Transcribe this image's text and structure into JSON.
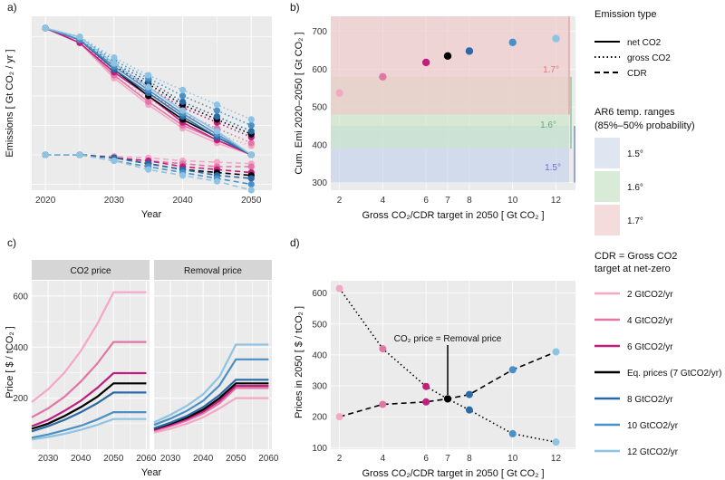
{
  "panels": {
    "a": {
      "tag": "a)",
      "xlabel": "Year",
      "ylabel": "Emissions [ Gt CO₂ / yr ]",
      "xticks": [
        "2020",
        "2030",
        "2040",
        "2050"
      ],
      "xtick_vals": [
        2020,
        2030,
        2040,
        2050
      ]
    },
    "b": {
      "tag": "b)",
      "xlabel": "Gross CO₂/CDR target in 2050 [ Gt CO₂ ]",
      "ylabel": "Cum. Emi 2020–2050 [ Gt CO₂ ]",
      "yticks": [
        "300",
        "400",
        "500",
        "600",
        "700"
      ],
      "ytick_vals": [
        300,
        400,
        500,
        600,
        700
      ],
      "xticks": [
        "2",
        "4",
        "6",
        "7",
        "8",
        "10",
        "12"
      ],
      "xtick_vals": [
        2,
        4,
        6,
        7,
        8,
        10,
        12
      ],
      "band_labels": [
        "1.7°",
        "1.6°",
        "1.5°"
      ]
    },
    "c": {
      "tag": "c)",
      "xlabel": "Year",
      "ylabel": "Price [ $ / tCO₂ ]",
      "strips": [
        "CO2 price",
        "Removal price"
      ],
      "yticks": [
        "200",
        "400",
        "600"
      ],
      "ytick_vals": [
        200,
        400,
        600
      ],
      "xticks": [
        "2030",
        "2040",
        "2050",
        "2060"
      ],
      "xtick_vals": [
        2030,
        2040,
        2050,
        2060
      ]
    },
    "d": {
      "tag": "d)",
      "xlabel": "Gross CO₂/CDR target in 2050 [ Gt CO₂ ]",
      "ylabel": "Prices in 2050 [ $ / tCO₂ ]",
      "annotation": "CO₂ price = Removal price",
      "yticks": [
        "100",
        "200",
        "300",
        "400",
        "500",
        "600"
      ],
      "ytick_vals": [
        100,
        200,
        300,
        400,
        500,
        600
      ],
      "xticks": [
        "2",
        "4",
        "6",
        "7",
        "8",
        "10",
        "12"
      ],
      "xtick_vals": [
        2,
        4,
        6,
        7,
        8,
        10,
        12
      ]
    }
  },
  "legends": {
    "emission_type": {
      "title": "Emission type",
      "items": [
        "net CO2",
        "gross CO2",
        "CDR"
      ]
    },
    "ar6": {
      "title_line1": "AR6 temp. ranges",
      "title_line2": "(85%–50% probability)",
      "items": [
        "1.5°",
        "1.6°",
        "1.7°"
      ],
      "colors": [
        "#dfe5f1",
        "#d8ebd6",
        "#f4dcdc"
      ]
    },
    "cdr": {
      "title_line1": "CDR = Gross CO2",
      "title_line2": "target at net-zero",
      "items": [
        "2 GtCO2/yr",
        "4 GtCO2/yr",
        "6 GtCO2/yr",
        "Eq. prices (7 GtCO2/yr)",
        "8 GtCO2/yr",
        "10 GtCO2/yr",
        "12 GtCO2/yr"
      ],
      "colors": [
        "#f4a7c6",
        "#e077a6",
        "#c21e7e",
        "#000000",
        "#2b6aa4",
        "#4a90c4",
        "#8fc3e2"
      ]
    }
  },
  "chart_data": [
    {
      "id": "a",
      "type": "line",
      "x": [
        2020,
        2025,
        2030,
        2035,
        2040,
        2045,
        2050
      ],
      "xlim": [
        2018,
        2053
      ],
      "ylim": [
        -12,
        47
      ],
      "series": [
        {
          "name": "2 GtCO2/yr",
          "net": [
            43,
            38,
            26,
            17,
            9,
            4,
            0
          ],
          "gross": [
            43,
            38,
            27,
            19,
            12,
            7,
            3
          ],
          "cdr": [
            0,
            0,
            -0.5,
            -1,
            -2,
            -2.5,
            -3
          ]
        },
        {
          "name": "4 GtCO2/yr",
          "net": [
            43,
            38,
            27,
            18,
            10,
            5,
            0
          ],
          "gross": [
            43,
            39,
            28,
            21,
            14,
            9,
            4
          ],
          "cdr": [
            0,
            0,
            -1,
            -2,
            -3,
            -4,
            -4
          ]
        },
        {
          "name": "6 GtCO2/yr",
          "net": [
            43,
            38,
            28,
            20,
            11,
            5,
            0
          ],
          "gross": [
            43,
            39,
            30,
            23,
            16,
            11,
            6
          ],
          "cdr": [
            0,
            0,
            -1,
            -2,
            -4,
            -5,
            -6
          ]
        },
        {
          "name": "Eq. prices (7 GtCO2/yr)",
          "net": [
            43,
            39,
            29,
            20,
            12,
            6,
            0
          ],
          "gross": [
            43,
            39,
            30,
            24,
            17,
            12,
            7
          ],
          "cdr": [
            0,
            0,
            -1,
            -3,
            -5,
            -6,
            -7
          ]
        },
        {
          "name": "8 GtCO2/yr",
          "net": [
            43,
            39,
            29,
            21,
            13,
            6,
            0
          ],
          "gross": [
            43,
            39,
            31,
            25,
            18,
            13,
            8
          ],
          "cdr": [
            0,
            0,
            -1,
            -3,
            -5,
            -7,
            -8
          ]
        },
        {
          "name": "10 GtCO2/yr",
          "net": [
            43,
            39,
            30,
            22,
            14,
            7,
            0
          ],
          "gross": [
            43,
            40,
            32,
            26,
            20,
            15,
            10
          ],
          "cdr": [
            0,
            0,
            -2,
            -4,
            -6,
            -8,
            -10
          ]
        },
        {
          "name": "12 GtCO2/yr",
          "net": [
            43,
            40,
            31,
            23,
            15,
            8,
            0
          ],
          "gross": [
            43,
            40,
            33,
            27,
            22,
            17,
            12
          ],
          "cdr": [
            0,
            0,
            -2,
            -5,
            -7,
            -9,
            -12
          ]
        }
      ]
    },
    {
      "id": "b",
      "type": "scatter",
      "xlim": [
        1.6,
        12.9
      ],
      "ylim": [
        280,
        740
      ],
      "bands": [
        {
          "label": "1.5°",
          "ymin": 300,
          "ymax": 450
        },
        {
          "label": "1.6°",
          "ymin": 390,
          "ymax": 580
        },
        {
          "label": "1.7°",
          "ymin": 480,
          "ymax": 740
        }
      ],
      "points": [
        [
          2,
          537
        ],
        [
          4,
          580
        ],
        [
          6,
          618
        ],
        [
          7,
          635
        ],
        [
          8,
          648
        ],
        [
          10,
          671
        ],
        [
          12,
          681
        ]
      ]
    },
    {
      "id": "c",
      "type": "line",
      "x": [
        2025,
        2030,
        2035,
        2040,
        2045,
        2050,
        2055,
        2060
      ],
      "xlim": [
        2025,
        2061
      ],
      "ylim": [
        0,
        660
      ],
      "co2_price": [
        [
          185,
          235,
          300,
          385,
          490,
          615,
          615,
          615
        ],
        [
          125,
          160,
          205,
          265,
          335,
          420,
          420,
          420
        ],
        [
          90,
          115,
          150,
          190,
          240,
          298,
          298,
          298
        ],
        [
          80,
          100,
          130,
          165,
          205,
          258,
          258,
          258
        ],
        [
          70,
          90,
          115,
          145,
          180,
          222,
          222,
          222
        ],
        [
          45,
          58,
          74,
          92,
          116,
          145,
          145,
          145
        ],
        [
          38,
          48,
          60,
          76,
          95,
          118,
          118,
          118
        ]
      ],
      "removal_price": [
        [
          65,
          80,
          100,
          125,
          160,
          200,
          200,
          200
        ],
        [
          72,
          90,
          112,
          140,
          180,
          240,
          240,
          240
        ],
        [
          76,
          95,
          118,
          148,
          190,
          248,
          248,
          248
        ],
        [
          80,
          100,
          124,
          155,
          200,
          258,
          258,
          258
        ],
        [
          82,
          104,
          130,
          165,
          212,
          272,
          272,
          272
        ],
        [
          95,
          120,
          150,
          190,
          250,
          352,
          352,
          352
        ],
        [
          105,
          135,
          170,
          215,
          285,
          410,
          410,
          410
        ]
      ]
    },
    {
      "id": "d",
      "type": "scatter",
      "xlim": [
        1.6,
        12.9
      ],
      "ylim": [
        95,
        640
      ],
      "series": [
        {
          "name": "CO2 price",
          "points": [
            [
              2,
              615
            ],
            [
              4,
              420
            ],
            [
              6,
              298
            ],
            [
              7,
              258
            ],
            [
              8,
              222
            ],
            [
              10,
              145
            ],
            [
              12,
              118
            ]
          ]
        },
        {
          "name": "Removal price",
          "points": [
            [
              2,
              200
            ],
            [
              4,
              240
            ],
            [
              6,
              248
            ],
            [
              7,
              258
            ],
            [
              8,
              272
            ],
            [
              10,
              352
            ],
            [
              12,
              410
            ]
          ]
        }
      ]
    }
  ]
}
